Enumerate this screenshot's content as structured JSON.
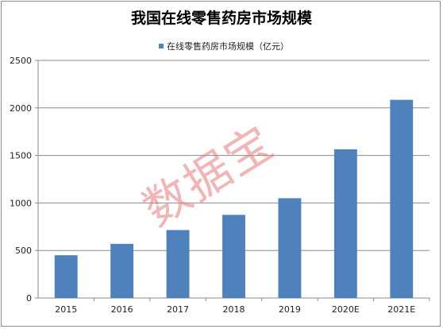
{
  "chart_data": {
    "type": "bar",
    "title": "我国在线零售药房市场规模",
    "legend": "在线零售药房市场规模（亿元）",
    "categories": [
      "2015",
      "2016",
      "2017",
      "2018",
      "2019",
      "2020E",
      "2021E"
    ],
    "values": [
      450,
      570,
      715,
      875,
      1050,
      1565,
      2085
    ],
    "ylim": [
      0,
      2500
    ],
    "yticks": [
      0,
      500,
      1000,
      1500,
      2000,
      2500
    ],
    "grid": true,
    "legend_position": "top-center",
    "bar_color": "#4f81bd"
  },
  "watermark": "数据宝"
}
